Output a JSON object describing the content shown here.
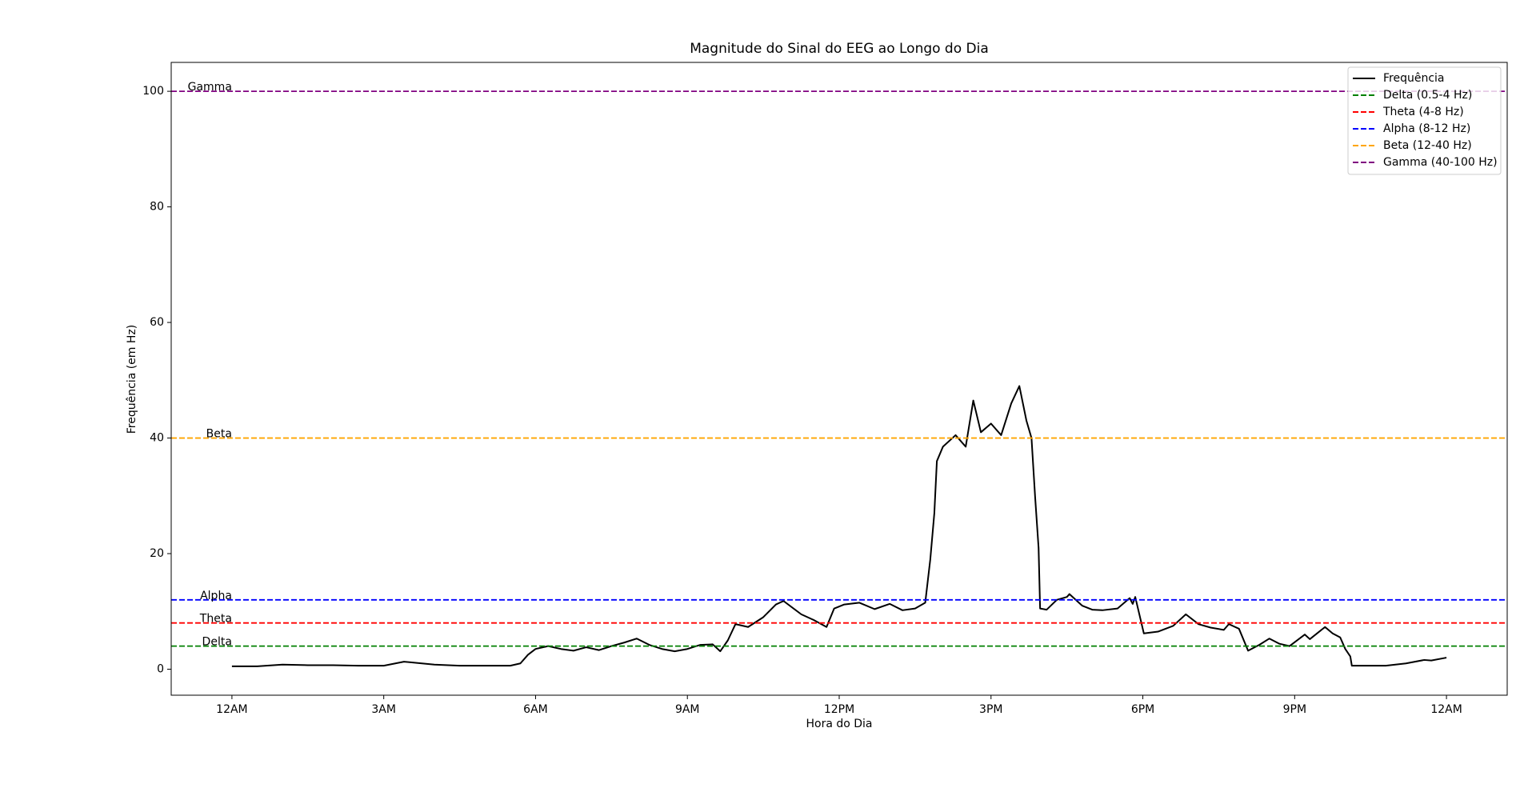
{
  "chart_data": {
    "type": "line",
    "title": "Magnitude do Sinal do EEG ao Longo do Dia",
    "xlabel": "Hora do Dia",
    "ylabel": "Frequência (em Hz)",
    "x": [
      0,
      0.5,
      1,
      1.5,
      2,
      2.5,
      3,
      3.4,
      4,
      4.5,
      5,
      5.5,
      5.7,
      5.85,
      6.0,
      6.25,
      6.5,
      6.75,
      7.0,
      7.25,
      7.5,
      7.75,
      8.0,
      8.25,
      8.5,
      8.75,
      9.0,
      9.25,
      9.5,
      9.65,
      9.8,
      9.95,
      10.2,
      10.5,
      10.75,
      10.9,
      11.25,
      11.5,
      11.75,
      11.9,
      12.1,
      12.4,
      12.7,
      13.0,
      13.25,
      13.5,
      13.7,
      13.8,
      13.88,
      13.93,
      14.05,
      14.3,
      14.5,
      14.65,
      14.8,
      15.0,
      15.2,
      15.4,
      15.56,
      15.7,
      15.8,
      15.87,
      15.94,
      15.97,
      16.1,
      16.3,
      16.5,
      16.55,
      16.8,
      17.0,
      17.2,
      17.5,
      17.74,
      17.8,
      17.85,
      18.02,
      18.3,
      18.6,
      18.85,
      19.1,
      19.34,
      19.6,
      19.7,
      19.9,
      20.08,
      20.3,
      20.5,
      20.7,
      20.9,
      21.2,
      21.3,
      21.6,
      21.75,
      21.9,
      22.0,
      22.1,
      22.13,
      22.5,
      22.8,
      23.2,
      23.56,
      23.7,
      24
    ],
    "series": [
      {
        "name": "Frequência",
        "color": "#000000",
        "values": [
          0.5,
          0.5,
          0.8,
          0.7,
          0.7,
          0.6,
          0.6,
          1.3,
          0.8,
          0.6,
          0.6,
          0.6,
          1.0,
          2.5,
          3.5,
          4.0,
          3.5,
          3.2,
          3.8,
          3.3,
          4.0,
          4.6,
          5.3,
          4.2,
          3.5,
          3.1,
          3.5,
          4.2,
          4.3,
          3.1,
          5.0,
          7.8,
          7.3,
          9.0,
          11.2,
          11.8,
          9.5,
          8.5,
          7.3,
          10.5,
          11.2,
          11.5,
          10.4,
          11.3,
          10.2,
          10.5,
          11.5,
          19,
          27,
          36,
          38.5,
          40.5,
          38.5,
          46.5,
          41,
          42.5,
          40.5,
          46,
          49,
          43,
          40,
          30,
          21,
          10.5,
          10.3,
          12,
          12.5,
          13,
          11,
          10.3,
          10.2,
          10.5,
          12.3,
          11.3,
          12.5,
          6.2,
          6.5,
          7.5,
          9.5,
          7.8,
          7.2,
          6.8,
          7.8,
          7.0,
          3.2,
          4.2,
          5.3,
          4.4,
          4.0,
          6.0,
          5.2,
          7.3,
          6.2,
          5.5,
          3.5,
          2.2,
          0.6,
          0.6,
          0.6,
          1.0,
          1.6,
          1.5,
          2.0
        ]
      }
    ],
    "reference_lines": [
      {
        "name": "Delta (0.5-4 Hz)",
        "label": "Delta",
        "value": 4,
        "color": "#008000"
      },
      {
        "name": "Theta (4-8 Hz)",
        "label": "Theta",
        "value": 8,
        "color": "#ff0000"
      },
      {
        "name": "Alpha (8-12 Hz)",
        "label": "Alpha",
        "value": 12,
        "color": "#0000ff"
      },
      {
        "name": "Beta (12-40 Hz)",
        "label": "Beta",
        "value": 40,
        "color": "#ffa500"
      },
      {
        "name": "Gamma (40-100 Hz)",
        "label": "Gamma",
        "value": 100,
        "color": "#800080"
      }
    ],
    "xlim": [
      -1.2,
      25.2
    ],
    "xticks": [
      {
        "value": 0,
        "label": "12AM"
      },
      {
        "value": 3,
        "label": "3AM"
      },
      {
        "value": 6,
        "label": "6AM"
      },
      {
        "value": 9,
        "label": "9AM"
      },
      {
        "value": 12,
        "label": "12PM"
      },
      {
        "value": 15,
        "label": "3PM"
      },
      {
        "value": 18,
        "label": "6PM"
      },
      {
        "value": 21,
        "label": "9PM"
      },
      {
        "value": 24,
        "label": "12AM"
      }
    ],
    "ylim": [
      -4.5,
      105
    ],
    "yticks": [
      0,
      20,
      40,
      60,
      80,
      100
    ],
    "legend": "upper right"
  }
}
